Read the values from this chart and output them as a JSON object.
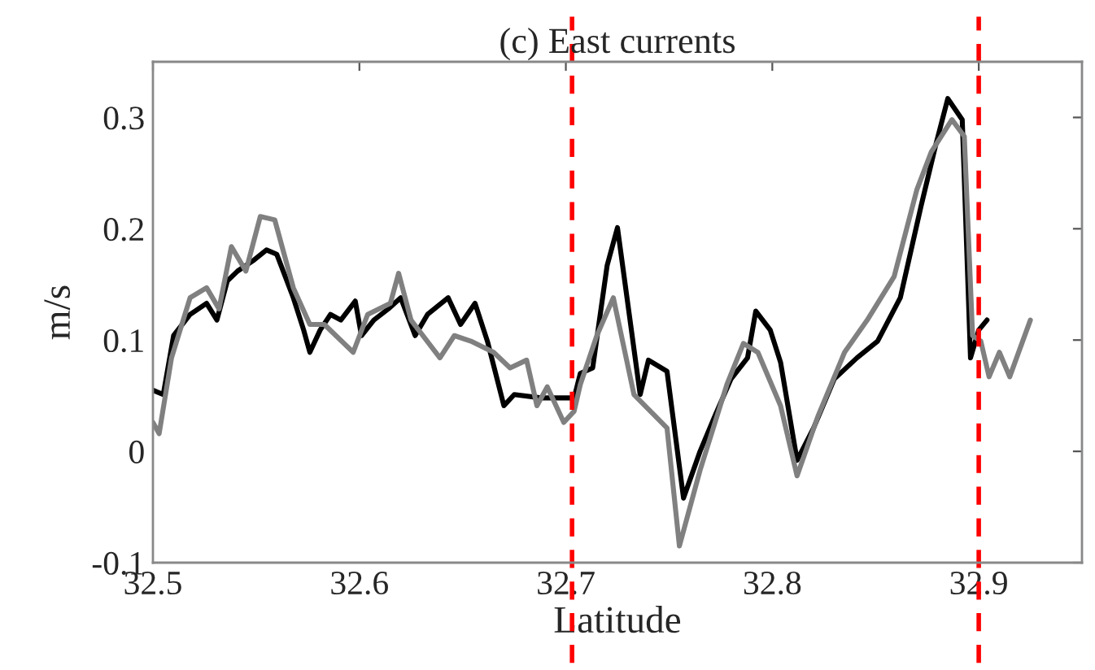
{
  "chart_data": {
    "type": "line",
    "title": "(c) East currents",
    "xlabel": "Latitude",
    "ylabel": "m/s",
    "xlim": [
      32.5,
      32.95
    ],
    "xticks": [
      32.5,
      32.6,
      32.7,
      32.8,
      32.9
    ],
    "ylim": [
      -0.1,
      0.35
    ],
    "yticks": [
      -0.1,
      0,
      0.1,
      0.2,
      0.3
    ],
    "grid": false,
    "marker": "none",
    "line_style": "solid",
    "series": [
      {
        "color": "#000000",
        "x": [
          32.5,
          32.505,
          32.51,
          32.518,
          32.526,
          32.531,
          32.536,
          32.541,
          32.549,
          32.555,
          32.56,
          32.568,
          32.573,
          32.576,
          32.581,
          32.586,
          32.591,
          32.598,
          32.601,
          32.607,
          32.614,
          32.62,
          32.627,
          32.633,
          32.643,
          32.649,
          32.656,
          32.662,
          32.67,
          32.675,
          32.688,
          32.704,
          32.707,
          32.713,
          32.72,
          32.725,
          32.736,
          32.74,
          32.749,
          32.757,
          32.765,
          32.772,
          32.78,
          32.788,
          32.792,
          32.799,
          32.804,
          32.812,
          32.82,
          32.83,
          32.841,
          32.851,
          32.862,
          32.872,
          32.879,
          32.885,
          32.892,
          32.896,
          32.9,
          32.904
        ],
        "values": [
          0.055,
          0.051,
          0.104,
          0.123,
          0.133,
          0.118,
          0.153,
          0.162,
          0.172,
          0.181,
          0.177,
          0.138,
          0.109,
          0.089,
          0.109,
          0.123,
          0.118,
          0.135,
          0.104,
          0.118,
          0.128,
          0.138,
          0.104,
          0.123,
          0.138,
          0.114,
          0.133,
          0.099,
          0.041,
          0.051,
          0.048,
          0.048,
          0.07,
          0.075,
          0.167,
          0.201,
          0.051,
          0.082,
          0.072,
          -0.042,
          0,
          0.031,
          0.065,
          0.084,
          0.126,
          0.109,
          0.08,
          -0.008,
          0.021,
          0.065,
          0.084,
          0.099,
          0.138,
          0.22,
          0.274,
          0.317,
          0.298,
          0.084,
          0.109,
          0.118
        ]
      },
      {
        "color": "#808080",
        "x": [
          32.5,
          32.503,
          32.509,
          32.518,
          32.526,
          32.532,
          32.538,
          32.545,
          32.552,
          32.559,
          32.568,
          32.576,
          32.583,
          32.597,
          32.604,
          32.615,
          32.619,
          32.625,
          32.639,
          32.646,
          32.654,
          32.665,
          32.673,
          32.681,
          32.686,
          32.691,
          32.699,
          32.704,
          32.707,
          32.715,
          32.723,
          32.733,
          32.741,
          32.749,
          32.755,
          32.765,
          32.778,
          32.786,
          32.793,
          32.804,
          32.812,
          32.822,
          32.835,
          32.846,
          32.859,
          32.87,
          32.877,
          32.887,
          32.893,
          32.897,
          32.901,
          32.905,
          32.91,
          32.915,
          32.925
        ],
        "values": [
          0.026,
          0.016,
          0.084,
          0.138,
          0.147,
          0.128,
          0.184,
          0.162,
          0.211,
          0.208,
          0.147,
          0.114,
          0.114,
          0.089,
          0.123,
          0.133,
          0.16,
          0.118,
          0.084,
          0.104,
          0.099,
          0.089,
          0.075,
          0.082,
          0.041,
          0.058,
          0.026,
          0.036,
          0.06,
          0.104,
          0.138,
          0.051,
          0.036,
          0.021,
          -0.085,
          -0.017,
          0.06,
          0.097,
          0.089,
          0.041,
          -0.022,
          0.031,
          0.089,
          0.118,
          0.157,
          0.235,
          0.269,
          0.298,
          0.283,
          0.104,
          0.099,
          0.067,
          0.089,
          0.067,
          0.118
        ]
      }
    ],
    "ref_lines": [
      {
        "axis": "x",
        "value": 32.703,
        "color": "#ff0000",
        "line_style": "dashed"
      },
      {
        "axis": "x",
        "value": 32.9,
        "color": "#ff0000",
        "line_style": "dashed"
      }
    ]
  }
}
